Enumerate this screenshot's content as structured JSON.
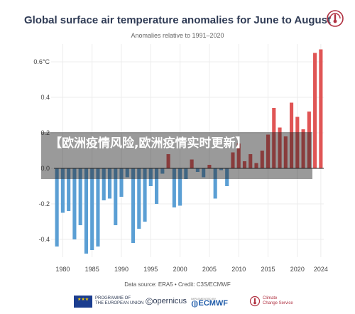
{
  "title": "Global surface air temperature anomalies for June to August",
  "subtitle": "Anomalies relative to 1991–2020",
  "source": "Data source: ERA5 • Credit: C3S/ECMWF",
  "overlay_text": "【欧洲疫情风险,欧洲疫情实时更新】",
  "footer": {
    "eu_label_1": "PROGRAMME OF",
    "eu_label_2": "THE EUROPEAN UNION",
    "copernicus": "opernicus",
    "ecmwf_small": "IMPLEMENTED BY",
    "ecmwf": "ECMWF",
    "ccs_1": "Climate",
    "ccs_2": "Change Service"
  },
  "colors": {
    "positive": "#e05555",
    "negative": "#5b9fd4",
    "title": "#2f3b55",
    "logo": "#b03040"
  },
  "chart_data": {
    "type": "bar",
    "title": "Global surface air temperature anomalies for June to August",
    "subtitle": "Anomalies relative to 1991–2020",
    "xlabel": "",
    "ylabel": "",
    "x": [
      1979,
      1980,
      1981,
      1982,
      1983,
      1984,
      1985,
      1986,
      1987,
      1988,
      1989,
      1990,
      1991,
      1992,
      1993,
      1994,
      1995,
      1996,
      1997,
      1998,
      1999,
      2000,
      2001,
      2002,
      2003,
      2004,
      2005,
      2006,
      2007,
      2008,
      2009,
      2010,
      2011,
      2012,
      2013,
      2014,
      2015,
      2016,
      2017,
      2018,
      2019,
      2020,
      2021,
      2022,
      2023,
      2024
    ],
    "values": [
      -0.44,
      -0.25,
      -0.24,
      -0.4,
      -0.32,
      -0.48,
      -0.46,
      -0.44,
      -0.18,
      -0.17,
      -0.32,
      -0.16,
      -0.05,
      -0.42,
      -0.34,
      -0.3,
      -0.1,
      -0.2,
      -0.03,
      0.08,
      -0.22,
      -0.21,
      -0.06,
      0.05,
      -0.02,
      -0.05,
      0.02,
      -0.17,
      -0.01,
      -0.1,
      0.09,
      0.14,
      0.04,
      0.08,
      0.03,
      0.1,
      0.19,
      0.34,
      0.23,
      0.18,
      0.37,
      0.29,
      0.22,
      0.32,
      0.65,
      0.67
    ],
    "yticks": [
      -0.4,
      -0.2,
      0.0,
      0.2,
      0.4,
      0.6
    ],
    "ytick_labels": [
      "-0.4",
      "-0.2",
      "0.0",
      "0.2",
      "0.4",
      "0.6°C"
    ],
    "xticks": [
      1980,
      1985,
      1990,
      1995,
      2000,
      2005,
      2010,
      2015,
      2020,
      2024
    ],
    "ylim": [
      -0.5,
      0.7
    ],
    "grid": true,
    "legend": "none"
  }
}
